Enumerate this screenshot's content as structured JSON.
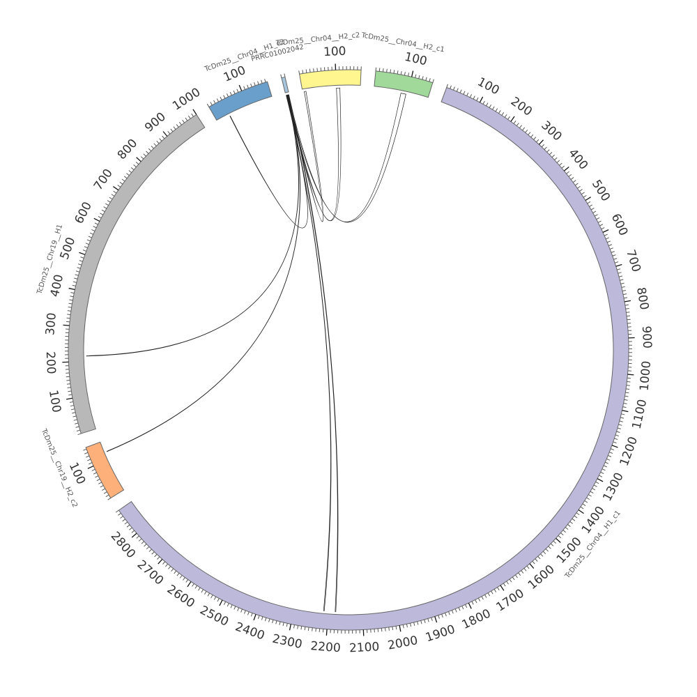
{
  "diagram": {
    "type": "circos",
    "tick_step": 10,
    "label_step": 100,
    "segments": [
      {
        "id": "TcDm25__Chr04__H1_c1",
        "label": "TcDm25__Chr04__H1_c1",
        "length": 2880,
        "color": "#BDB9DB",
        "label_at": 1450
      },
      {
        "id": "TcDm25__Chr19__H2_c2",
        "label": "TcDm25__Chr19__H2_c2",
        "length": 155,
        "color": "#FDB07A",
        "label_at": 130
      },
      {
        "id": "TcDm25__Chr19__H1",
        "label": "TcDm25__Chr19__H1",
        "length": 1000,
        "color": "#B8B8B8",
        "label_at": 460
      },
      {
        "id": "TcDm25__Chr04__H1_c2",
        "label": "TcDm25__Chr04__H1_c2",
        "length": 175,
        "color": "#6A9ECB",
        "label_at": 140
      },
      {
        "id": "PRRC01002042",
        "label": "PRRC01002042",
        "length": 10,
        "color": "#A6C4DC",
        "label_at": 5
      },
      {
        "id": "TcDm25__Chr04__H2_c2",
        "label": "TcDm25__Chr04__H2_c2",
        "length": 170,
        "color": "#FFF68F",
        "label_at": 60
      },
      {
        "id": "TcDm25__Chr04__H2_c1",
        "label": "TcDm25__Chr04__H2_c1",
        "length": 160,
        "color": "#A1D99B",
        "label_at": 60
      }
    ],
    "links": [
      {
        "from": [
          "PRRC01002042",
          2,
          5
        ],
        "to": [
          "TcDm25__Chr04__H2_c2",
          100,
          110
        ],
        "color": "#3A3F6E"
      },
      {
        "from": [
          "PRRC01002042",
          5,
          8
        ],
        "to": [
          "TcDm25__Chr04__H2_c1",
          80,
          95
        ],
        "color": "#B8B020"
      },
      {
        "from": [
          "PRRC01002042",
          4,
          6
        ],
        "to": [
          "TcDm25__Chr04__H2_c2",
          5,
          10
        ],
        "color": "#CDBE2C"
      },
      {
        "from": [
          "PRRC01002042",
          1,
          2
        ],
        "to": [
          "TcDm25__Chr04__H1_c2",
          40,
          41
        ],
        "color": "#5A3020"
      },
      {
        "from": [
          "PRRC01002042",
          3,
          4
        ],
        "to": [
          "TcDm25__Chr19__H1",
          215,
          216
        ],
        "color": "#7A3A1A"
      },
      {
        "from": [
          "PRRC01002042",
          6,
          7
        ],
        "to": [
          "TcDm25__Chr19__H2_c2",
          122,
          123
        ],
        "color": "#5A3A2A"
      },
      {
        "from": [
          "PRRC01002042",
          7,
          9
        ],
        "to": [
          "TcDm25__Chr04__H1_c1",
          2178,
          2180
        ],
        "color": "#6FA8A0"
      },
      {
        "from": [
          "PRRC01002042",
          2,
          3
        ],
        "to": [
          "TcDm25__Chr04__H1_c1",
          2212,
          2214
        ],
        "color": "#4A6A9A"
      }
    ]
  }
}
